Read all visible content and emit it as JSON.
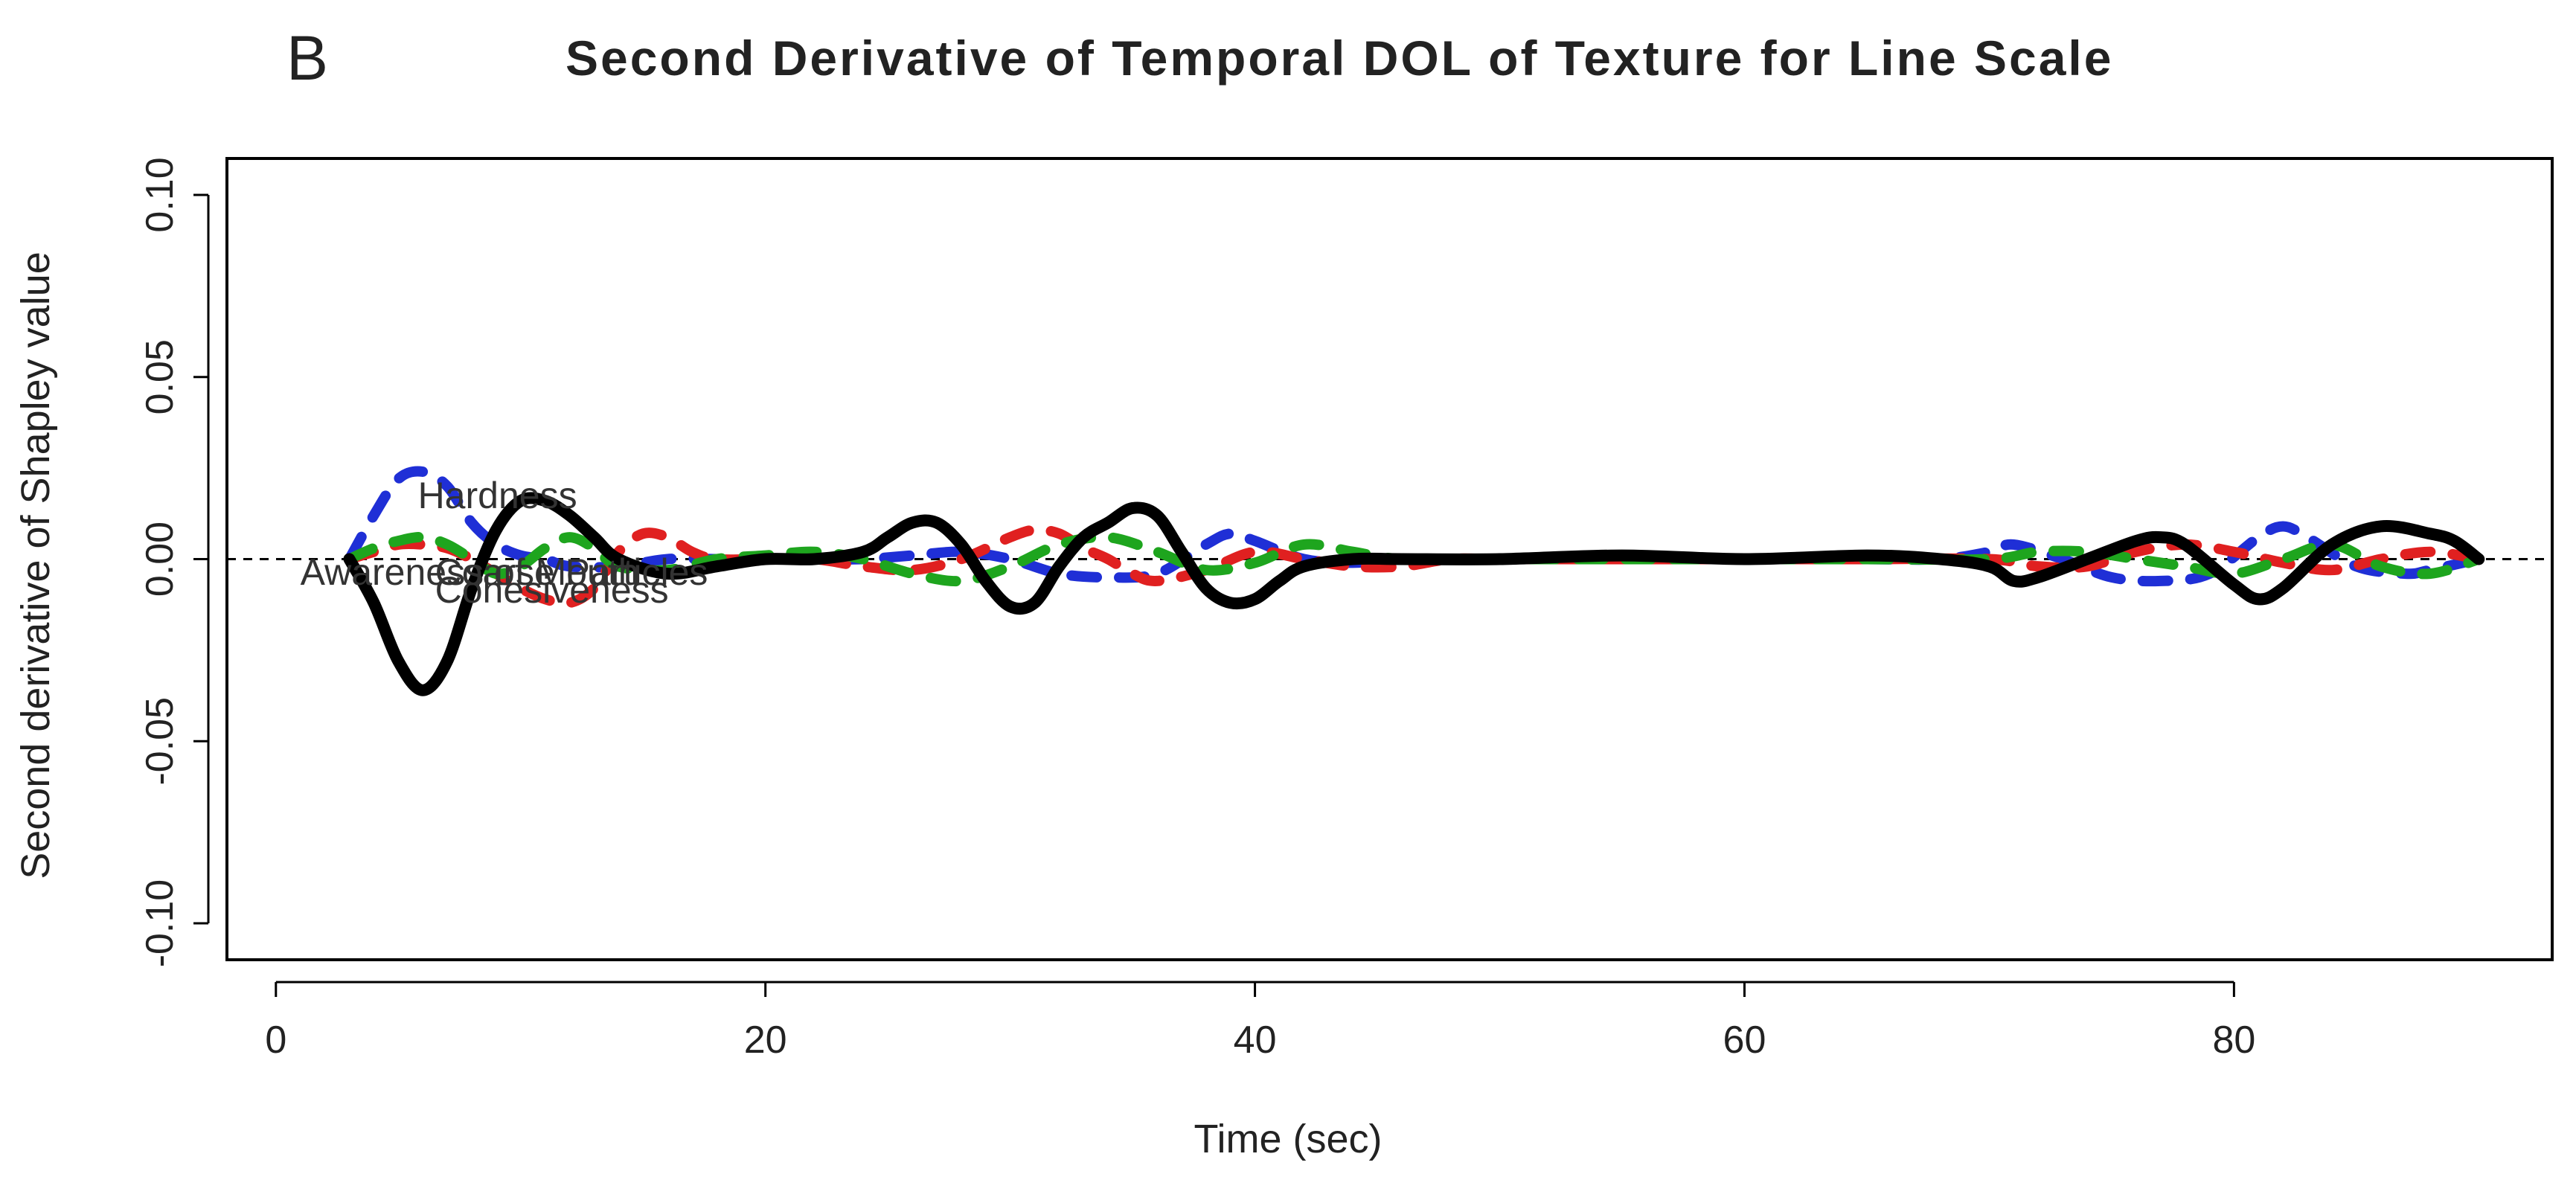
{
  "panel_letter": "B",
  "chart_data": {
    "type": "line",
    "title": "Second Derivative of Temporal DOL of Texture for Line Scale",
    "xlabel": "Time (sec)",
    "ylabel": "Second derivative of Shapley value",
    "xlim": [
      -2,
      93
    ],
    "ylim": [
      -0.11,
      0.11
    ],
    "x_ticks": [
      0,
      20,
      40,
      60,
      80
    ],
    "y_ticks": [
      -0.1,
      -0.05,
      0.0,
      0.05,
      0.1
    ],
    "x_tick_labels": [
      "0",
      "20",
      "40",
      "60",
      "80"
    ],
    "y_tick_labels": [
      "-0.10",
      "-0.05",
      "0.00",
      "0.05",
      "0.10"
    ],
    "grid": false,
    "reference_line": {
      "y": 0,
      "style": "dashed",
      "color": "#000000"
    },
    "series": [
      {
        "name": "Hardness",
        "color": "#1f2fd6",
        "style": "dashed",
        "x": [
          3,
          4,
          5,
          6,
          7,
          8,
          9,
          10,
          11,
          12,
          14,
          16,
          18,
          20,
          22,
          24,
          26,
          28,
          30,
          32,
          34,
          36,
          38,
          39,
          40,
          42,
          44,
          46,
          50,
          55,
          60,
          65,
          68,
          70,
          71,
          73,
          75,
          77,
          79,
          81,
          82,
          83,
          85,
          87,
          88,
          90
        ],
        "y": [
          0.0,
          0.012,
          0.022,
          0.024,
          0.02,
          0.01,
          0.004,
          0.001,
          0.0,
          -0.002,
          -0.002,
          0.0,
          0.0,
          0.0,
          0.0,
          0.0,
          0.001,
          0.002,
          0.0,
          -0.004,
          -0.005,
          -0.004,
          0.004,
          0.007,
          0.005,
          0.0,
          -0.001,
          0.0,
          0.0,
          0.0,
          0.0,
          0.0,
          0.0,
          0.002,
          0.004,
          0.0,
          -0.005,
          -0.006,
          -0.004,
          0.006,
          0.009,
          0.006,
          -0.002,
          -0.004,
          -0.003,
          0.0
        ]
      },
      {
        "name": "Coarse Particles",
        "color": "#e02020",
        "style": "dashed",
        "x": [
          3,
          4,
          5,
          6,
          7,
          8,
          9,
          10,
          11,
          12,
          13,
          14,
          15,
          16,
          17,
          18,
          20,
          22,
          24,
          26,
          28,
          30,
          31,
          32,
          33,
          34,
          35,
          36,
          38,
          40,
          42,
          44,
          46,
          48,
          50,
          55,
          60,
          65,
          70,
          72,
          74,
          76,
          78,
          80,
          82,
          84,
          86,
          88,
          90
        ],
        "y": [
          0.0,
          0.002,
          0.004,
          0.004,
          0.003,
          0.0,
          -0.004,
          -0.008,
          -0.011,
          -0.012,
          -0.008,
          0.002,
          0.007,
          0.006,
          0.002,
          0.0,
          0.0,
          0.0,
          -0.002,
          -0.003,
          0.0,
          0.006,
          0.008,
          0.007,
          0.003,
          0.0,
          -0.004,
          -0.006,
          -0.003,
          0.002,
          0.0,
          -0.002,
          -0.002,
          0.0,
          0.0,
          0.0,
          0.0,
          0.0,
          0.0,
          -0.002,
          -0.002,
          0.002,
          0.004,
          0.002,
          -0.001,
          -0.003,
          0.0,
          0.002,
          0.0
        ]
      },
      {
        "name": "Cohesiveness",
        "color": "#1ea51e",
        "style": "dashed",
        "x": [
          3,
          4,
          5,
          6,
          7,
          8,
          9,
          10,
          11,
          12,
          13,
          14,
          16,
          18,
          20,
          22,
          24,
          26,
          28,
          30,
          32,
          34,
          36,
          38,
          40,
          42,
          44,
          46,
          50,
          55,
          60,
          65,
          70,
          72,
          74,
          76,
          78,
          80,
          82,
          84,
          86,
          88,
          90
        ],
        "y": [
          0.0,
          0.003,
          0.005,
          0.006,
          0.004,
          0.0,
          -0.004,
          -0.002,
          0.003,
          0.006,
          0.003,
          -0.002,
          -0.003,
          0.0,
          0.001,
          0.002,
          0.0,
          -0.004,
          -0.006,
          -0.002,
          0.004,
          0.006,
          0.002,
          -0.003,
          -0.001,
          0.004,
          0.002,
          0.0,
          0.0,
          0.0,
          0.0,
          0.0,
          0.0,
          0.002,
          0.002,
          0.0,
          -0.002,
          -0.004,
          0.0,
          0.004,
          -0.002,
          -0.004,
          0.0
        ]
      },
      {
        "name": "Awareness of Mouth",
        "color": "#000000",
        "style": "solid",
        "x": [
          3,
          4,
          5,
          6,
          7,
          8,
          9,
          10,
          11,
          12,
          13,
          14,
          16,
          18,
          20,
          22,
          24,
          25,
          26,
          27,
          28,
          29,
          30,
          31,
          32,
          33,
          34,
          35,
          36,
          37,
          38,
          39,
          40,
          41,
          42,
          44,
          46,
          50,
          55,
          60,
          65,
          68,
          70,
          71,
          72,
          74,
          76,
          77,
          78,
          80,
          81,
          82,
          84,
          86,
          88,
          89,
          90
        ],
        "y": [
          0.0,
          -0.012,
          -0.028,
          -0.036,
          -0.028,
          -0.008,
          0.008,
          0.016,
          0.016,
          0.012,
          0.006,
          0.0,
          -0.004,
          -0.002,
          0.0,
          0.0,
          0.002,
          0.006,
          0.01,
          0.01,
          0.004,
          -0.006,
          -0.013,
          -0.012,
          -0.002,
          0.006,
          0.01,
          0.014,
          0.012,
          0.002,
          -0.008,
          -0.012,
          -0.011,
          -0.006,
          -0.002,
          0.0,
          0.0,
          0.0,
          0.001,
          0.0,
          0.001,
          0.0,
          -0.002,
          -0.006,
          -0.005,
          0.0,
          0.005,
          0.006,
          0.004,
          -0.007,
          -0.011,
          -0.008,
          0.004,
          0.009,
          0.007,
          0.005,
          0.0
        ]
      }
    ],
    "annotations": [
      {
        "text": "Hardness",
        "x": 5.8,
        "y": 0.014
      },
      {
        "text": "Coarse Particles",
        "x": 6.5,
        "y": -0.007
      },
      {
        "text": "Awareness of Mouth",
        "x": 1.0,
        "y": -0.007
      },
      {
        "text": "Cohesiveness",
        "x": 6.5,
        "y": -0.012
      }
    ]
  }
}
